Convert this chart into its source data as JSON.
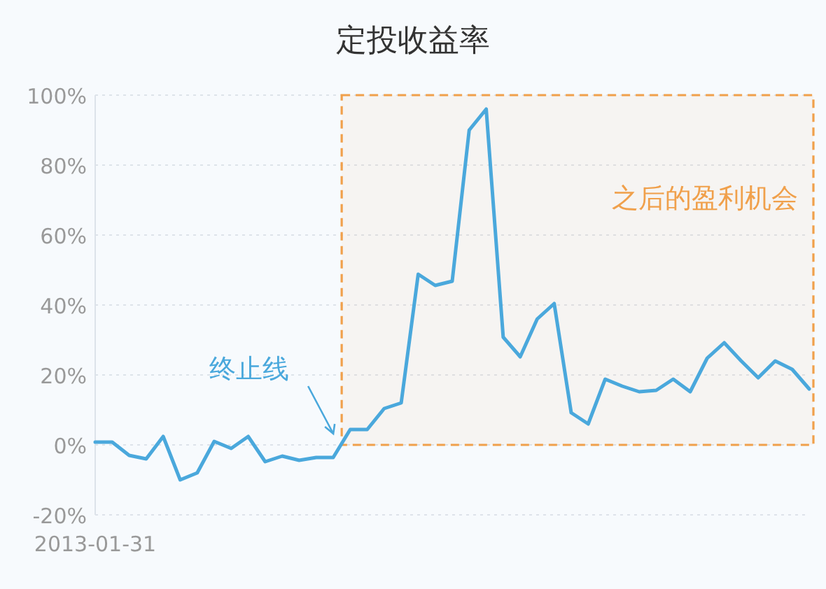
{
  "chart_data": {
    "type": "line",
    "title": "定投收益率",
    "categories": [
      "2013-01-31",
      null,
      null,
      null,
      null,
      null,
      null,
      null,
      null,
      null,
      null,
      null,
      null,
      null,
      null,
      null,
      null,
      null,
      null,
      null,
      null,
      null,
      null,
      null,
      null,
      null,
      null,
      null,
      null,
      null,
      null,
      null,
      null,
      null,
      null,
      null,
      null,
      null,
      null,
      null,
      null,
      null,
      null
    ],
    "series": [
      {
        "color": "#4aa8dc",
        "values": [
          0.8,
          0.8,
          -3,
          -4,
          2.4,
          -10,
          -8,
          1,
          -1,
          2.4,
          -4.8,
          -3.2,
          -4.4,
          -3.6,
          -3.6,
          4.4,
          4.4,
          10.4,
          12,
          48.8,
          45.6,
          46.8,
          90,
          96,
          30.8,
          25.2,
          36,
          40.4,
          9.2,
          6,
          18.8,
          16.8,
          15.2,
          15.6,
          18.8,
          15.2,
          24.8,
          29.2,
          24,
          19.2,
          24,
          21.6,
          16
        ]
      }
    ],
    "ylim": [
      -20,
      100
    ],
    "yticks": [
      {
        "value": -20,
        "label": "-20%"
      },
      {
        "value": 0,
        "label": "0%"
      },
      {
        "value": 20,
        "label": "20%"
      },
      {
        "value": 40,
        "label": "40%"
      },
      {
        "value": 60,
        "label": "60%"
      },
      {
        "value": 80,
        "label": "80%"
      },
      {
        "value": 100,
        "label": "100%"
      }
    ],
    "grid": "y",
    "marker": "none",
    "line_style": "solid",
    "ref_lines": [
      {
        "axis": "x",
        "value": null,
        "label": "终止线",
        "color": "#4aa8dc"
      }
    ],
    "bands": [
      {
        "axis": "y",
        "from": 0,
        "to": 100,
        "label": "之后的盈利机会",
        "color": "#f0a04b"
      }
    ]
  }
}
